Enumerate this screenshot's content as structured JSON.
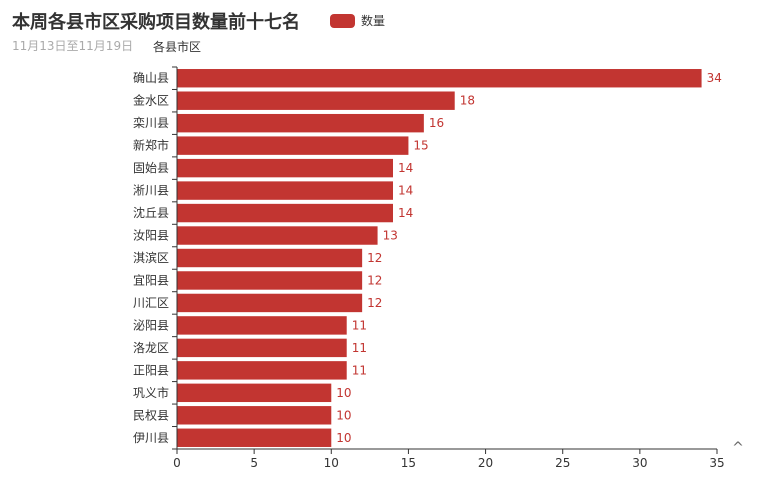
{
  "chart_data": {
    "type": "bar",
    "orientation": "horizontal",
    "title": "本周各县市区采购项目数量前十七名",
    "subtitle": "11月13日至11月19日",
    "ylabel": "各县市区",
    "xlabel": "",
    "xlim": [
      0,
      35
    ],
    "xticks": [
      0,
      5,
      10,
      15,
      20,
      25,
      30,
      35
    ],
    "categories": [
      "确山县",
      "金水区",
      "栾川县",
      "新郑市",
      "固始县",
      "淅川县",
      "沈丘县",
      "汝阳县",
      "淇滨区",
      "宜阳县",
      "川汇区",
      "泌阳县",
      "洛龙区",
      "正阳县",
      "巩义市",
      "民权县",
      "伊川县"
    ],
    "series": [
      {
        "name": "数量",
        "color": "#c23531",
        "values": [
          34,
          18,
          16,
          15,
          14,
          14,
          14,
          13,
          12,
          12,
          12,
          11,
          11,
          11,
          10,
          10,
          10
        ]
      }
    ],
    "legend_position": "top",
    "data_labels": true,
    "grid": false
  },
  "toolbox_icon": "back-to-top-icon"
}
